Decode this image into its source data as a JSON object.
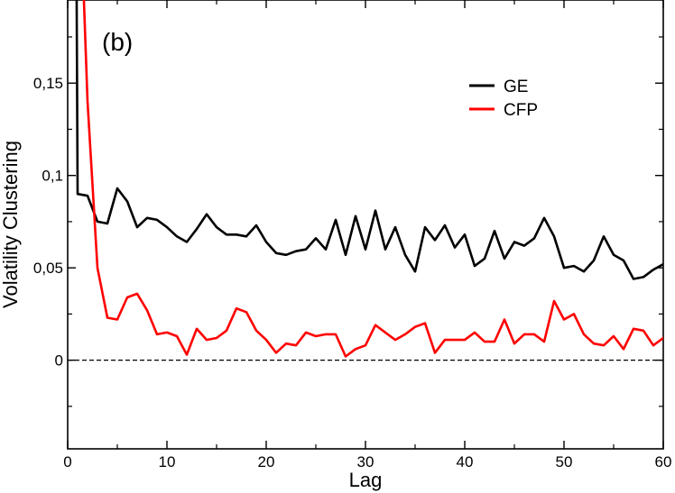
{
  "chart_data": {
    "type": "line",
    "panel_label": "(b)",
    "xlabel": "Lag",
    "ylabel": "Volatility Clustering",
    "xlim": [
      0,
      60
    ],
    "ylim": [
      -0.048,
      0.195
    ],
    "x_ticks": [
      0,
      10,
      20,
      30,
      40,
      50,
      60
    ],
    "x_tick_labels": [
      "0",
      "10",
      "20",
      "30",
      "40",
      "50",
      "60"
    ],
    "y_ticks": [
      0,
      0.05,
      0.1,
      0.15
    ],
    "y_tick_labels": [
      "0",
      "0,05",
      "0,1",
      "0,15"
    ],
    "reference_line": {
      "y": 0,
      "style": "dashed"
    },
    "legend_position": "top-right",
    "series": [
      {
        "name": "GE",
        "color": "#000000",
        "x": [
          0.9,
          1,
          2,
          3,
          4,
          5,
          6,
          7,
          8,
          9,
          10,
          11,
          12,
          13,
          14,
          15,
          16,
          17,
          18,
          19,
          20,
          21,
          22,
          23,
          24,
          25,
          26,
          27,
          28,
          29,
          30,
          31,
          32,
          33,
          34,
          35,
          36,
          37,
          38,
          39,
          40,
          41,
          42,
          43,
          44,
          45,
          46,
          47,
          48,
          49,
          50,
          51,
          52,
          53,
          54,
          55,
          56,
          57,
          58,
          59,
          60
        ],
        "values": [
          0.2,
          0.09,
          0.089,
          0.075,
          0.074,
          0.093,
          0.086,
          0.072,
          0.077,
          0.076,
          0.072,
          0.067,
          0.064,
          0.071,
          0.079,
          0.072,
          0.068,
          0.068,
          0.067,
          0.073,
          0.064,
          0.058,
          0.057,
          0.059,
          0.06,
          0.066,
          0.06,
          0.076,
          0.057,
          0.078,
          0.06,
          0.081,
          0.06,
          0.072,
          0.057,
          0.048,
          0.072,
          0.065,
          0.073,
          0.061,
          0.068,
          0.051,
          0.055,
          0.07,
          0.055,
          0.064,
          0.062,
          0.066,
          0.077,
          0.067,
          0.05,
          0.051,
          0.048,
          0.054,
          0.067,
          0.057,
          0.054,
          0.044,
          0.045,
          0.049,
          0.052
        ]
      },
      {
        "name": "CFP",
        "color": "#ff0000",
        "x": [
          1.6,
          2,
          3,
          4,
          5,
          6,
          7,
          8,
          9,
          10,
          11,
          12,
          13,
          14,
          15,
          16,
          17,
          18,
          19,
          20,
          21,
          22,
          23,
          24,
          25,
          26,
          27,
          28,
          29,
          30,
          31,
          32,
          33,
          34,
          35,
          36,
          37,
          38,
          39,
          40,
          41,
          42,
          43,
          44,
          45,
          46,
          47,
          48,
          49,
          50,
          51,
          52,
          53,
          54,
          55,
          56,
          57,
          58,
          59,
          60
        ],
        "values": [
          0.2,
          0.14,
          0.05,
          0.023,
          0.022,
          0.034,
          0.036,
          0.027,
          0.014,
          0.015,
          0.013,
          0.003,
          0.017,
          0.011,
          0.012,
          0.016,
          0.028,
          0.026,
          0.016,
          0.011,
          0.004,
          0.009,
          0.008,
          0.015,
          0.013,
          0.014,
          0.014,
          0.002,
          0.006,
          0.008,
          0.019,
          0.015,
          0.011,
          0.014,
          0.018,
          0.02,
          0.004,
          0.011,
          0.011,
          0.011,
          0.015,
          0.01,
          0.01,
          0.022,
          0.009,
          0.014,
          0.014,
          0.01,
          0.032,
          0.022,
          0.025,
          0.014,
          0.009,
          0.008,
          0.013,
          0.006,
          0.017,
          0.016,
          0.008,
          0.012
        ]
      }
    ]
  }
}
